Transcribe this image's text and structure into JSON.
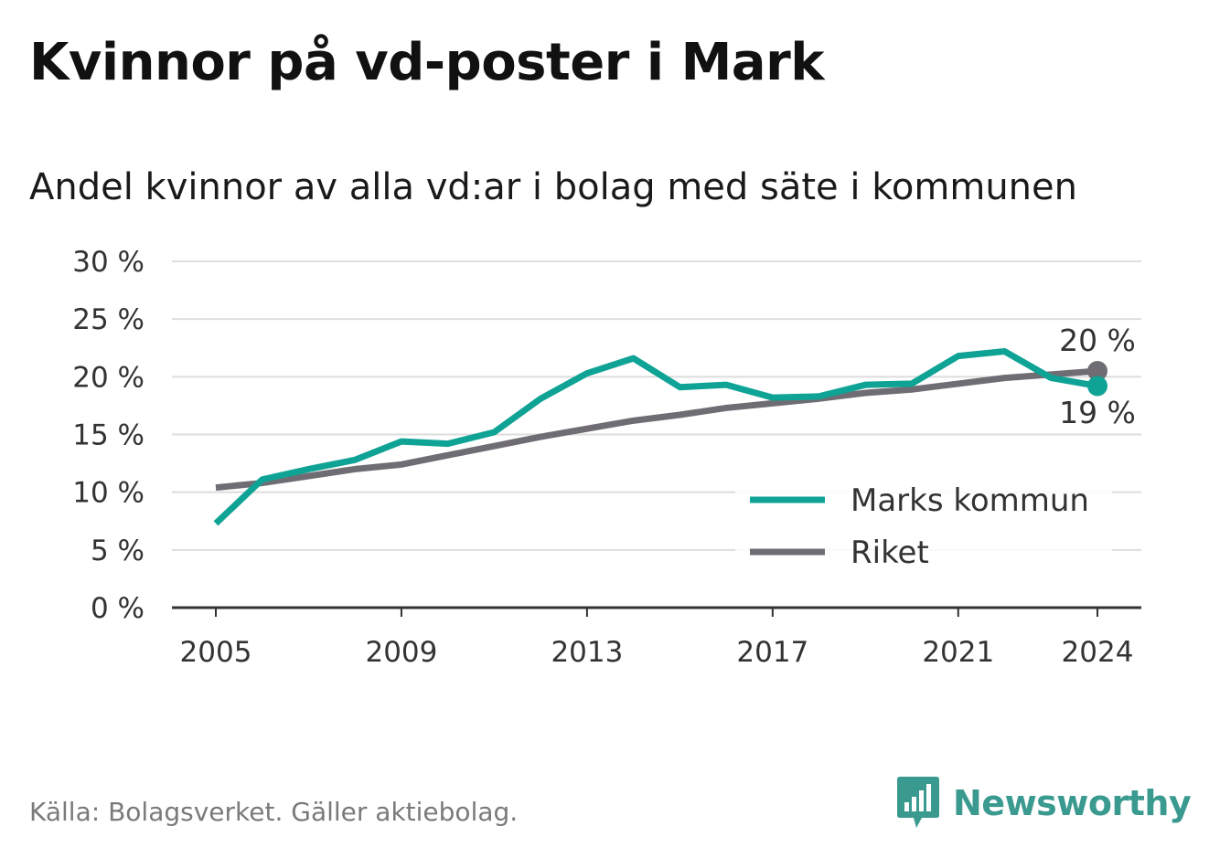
{
  "title": "Kvinnor på vd-poster i Mark",
  "subtitle": "Andel kvinnor av alla vd:ar i bolag med säte i kommunen",
  "source": "Källa: Bolagsverket. Gäller aktiebolag.",
  "brand": "Newsworthy",
  "colors": {
    "accent": "#0fa396",
    "secondary": "#6f6d73",
    "grid": "#dddddd",
    "brand": "#3a9a8f"
  },
  "chart_data": {
    "type": "line",
    "x": [
      2005,
      2006,
      2007,
      2008,
      2009,
      2010,
      2011,
      2012,
      2013,
      2014,
      2015,
      2016,
      2017,
      2018,
      2019,
      2020,
      2021,
      2022,
      2023,
      2024
    ],
    "x_ticks": [
      "2005",
      "2009",
      "2013",
      "2017",
      "2021",
      "2024"
    ],
    "y_ticks": [
      "0 %",
      "5 %",
      "10 %",
      "15 %",
      "20 %",
      "25 %",
      "30 %"
    ],
    "ylim": [
      0,
      30
    ],
    "grid": true,
    "legend_position": "bottom-right",
    "series": [
      {
        "name": "Marks kommun",
        "color": "#0fa396",
        "values": [
          7.3,
          11.1,
          12.0,
          12.8,
          14.4,
          14.2,
          15.2,
          18.1,
          20.3,
          21.6,
          19.1,
          19.3,
          18.2,
          18.3,
          19.3,
          19.4,
          21.8,
          22.2,
          19.9,
          19.2
        ],
        "end_label": "19 %"
      },
      {
        "name": "Riket",
        "color": "#6f6d73",
        "values": [
          10.4,
          10.8,
          11.4,
          12.0,
          12.4,
          13.2,
          14.0,
          14.8,
          15.5,
          16.2,
          16.7,
          17.3,
          17.7,
          18.1,
          18.6,
          18.9,
          19.4,
          19.9,
          20.2,
          20.5
        ],
        "end_label": "20 %"
      }
    ]
  }
}
